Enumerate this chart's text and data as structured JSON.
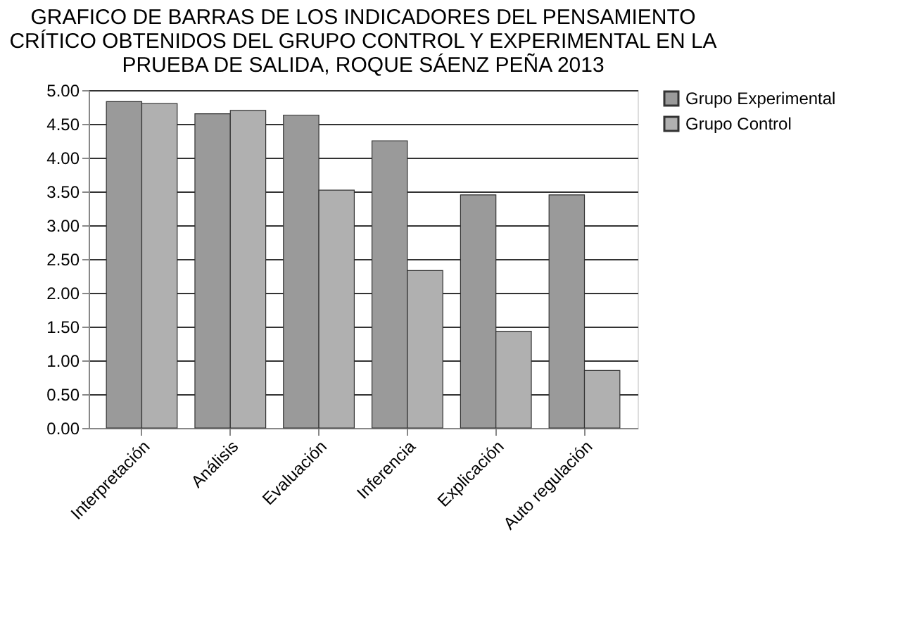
{
  "chart_data": {
    "type": "bar",
    "title": [
      "GRAFICO DE BARRAS DE LOS INDICADORES DEL PENSAMIENTO",
      "CRÍTICO OBTENIDOS DEL GRUPO CONTROL Y EXPERIMENTAL EN LA",
      "PRUEBA DE SALIDA, ROQUE SÁENZ PEÑA 2013"
    ],
    "categories": [
      "Interpretación",
      "Análisis",
      "Evaluación",
      "Inferencia",
      "Explicación",
      "Auto regulación"
    ],
    "series": [
      {
        "name": "Grupo Experimental",
        "color": "#9a9a9a",
        "values": [
          4.83,
          4.65,
          4.63,
          4.25,
          3.45,
          3.45
        ]
      },
      {
        "name": "Grupo Control",
        "color": "#b0b0b0",
        "values": [
          4.8,
          4.7,
          3.52,
          2.33,
          1.43,
          0.85
        ]
      }
    ],
    "ylim": [
      0,
      5
    ],
    "yticks": [
      {
        "value": 0,
        "label": "0.00"
      },
      {
        "value": 0.5,
        "label": "0.50"
      },
      {
        "value": 1,
        "label": "1.00"
      },
      {
        "value": 1.5,
        "label": "1.50"
      },
      {
        "value": 2,
        "label": "2.00"
      },
      {
        "value": 2.5,
        "label": "2.50"
      },
      {
        "value": 3,
        "label": "3.00"
      },
      {
        "value": 3.5,
        "label": "3.50"
      },
      {
        "value": 4,
        "label": "4.00"
      },
      {
        "value": 4.5,
        "label": "4.50"
      },
      {
        "value": 5,
        "label": "5.00"
      }
    ],
    "grid": "y",
    "legend": "right"
  }
}
